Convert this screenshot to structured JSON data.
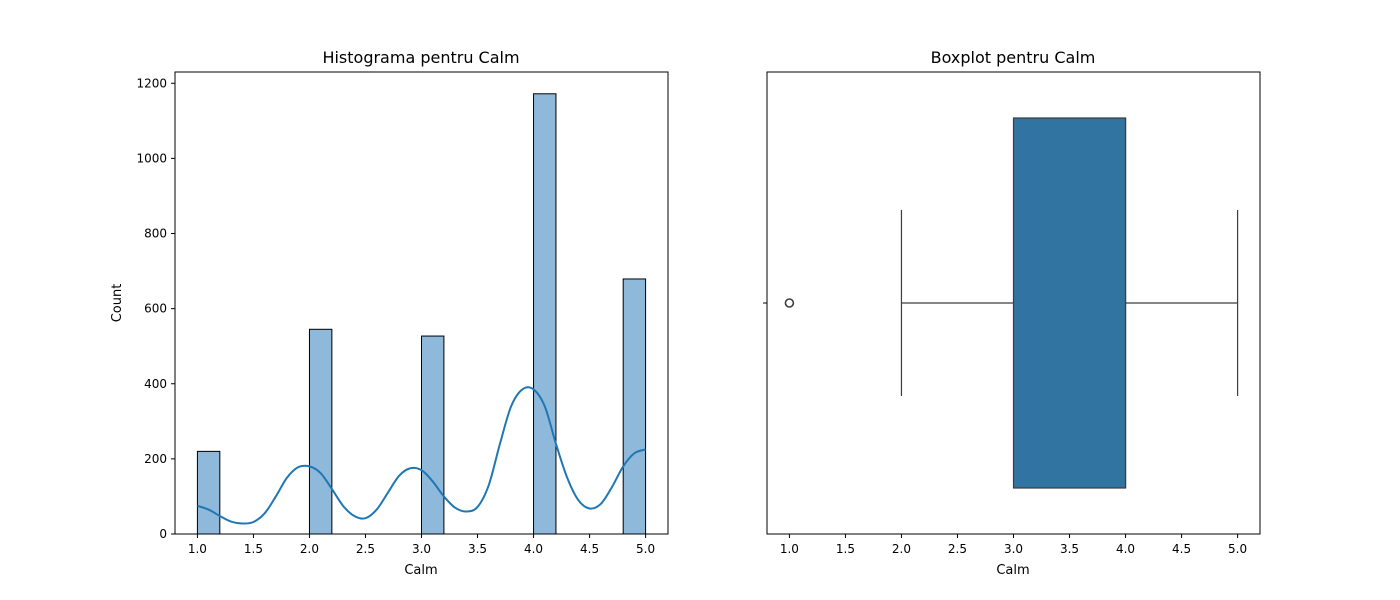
{
  "chart_data": [
    {
      "type": "bar",
      "title": "Histograma pentru Calm",
      "xlabel": "Calm",
      "ylabel": "Count",
      "xlim": [
        0.8,
        5.2
      ],
      "ylim": [
        0,
        1230
      ],
      "xticks": [
        1.0,
        1.5,
        2.0,
        2.5,
        3.0,
        3.5,
        4.0,
        4.5,
        5.0
      ],
      "xtick_labels": [
        "1.0",
        "1.5",
        "2.0",
        "2.5",
        "3.0",
        "3.5",
        "4.0",
        "4.5",
        "5.0"
      ],
      "yticks": [
        0,
        200,
        400,
        600,
        800,
        1000,
        1200
      ],
      "ytick_labels": [
        "0",
        "200",
        "400",
        "600",
        "800",
        "1000",
        "1200"
      ],
      "bar_width": 0.2,
      "bars": [
        {
          "x": 1.0,
          "value": 220
        },
        {
          "x": 2.0,
          "value": 545
        },
        {
          "x": 3.0,
          "value": 527
        },
        {
          "x": 4.0,
          "value": 1172
        },
        {
          "x": 4.8,
          "value": 679
        }
      ],
      "kde": {
        "x": [
          1.0,
          1.1,
          1.2,
          1.3,
          1.4,
          1.5,
          1.6,
          1.7,
          1.8,
          1.9,
          2.0,
          2.1,
          2.2,
          2.3,
          2.4,
          2.5,
          2.6,
          2.7,
          2.8,
          2.9,
          3.0,
          3.1,
          3.2,
          3.3,
          3.4,
          3.5,
          3.6,
          3.7,
          3.8,
          3.9,
          4.0,
          4.1,
          4.2,
          4.3,
          4.4,
          4.5,
          4.6,
          4.7,
          4.8,
          4.9,
          5.0
        ],
        "y": [
          75,
          65,
          48,
          33,
          28,
          32,
          55,
          100,
          150,
          178,
          180,
          162,
          120,
          75,
          48,
          42,
          65,
          110,
          155,
          175,
          170,
          140,
          100,
          70,
          60,
          72,
          130,
          240,
          340,
          385,
          385,
          340,
          240,
          150,
          90,
          68,
          80,
          125,
          180,
          215,
          225
        ]
      },
      "colors": {
        "bar_fill": "#8fb9da",
        "bar_edge": "#000000",
        "kde": "#1f77b4"
      }
    },
    {
      "type": "box",
      "title": "Boxplot pentru Calm",
      "xlabel": "Calm",
      "xlim": [
        0.8,
        5.2
      ],
      "xticks": [
        1.0,
        1.5,
        2.0,
        2.5,
        3.0,
        3.5,
        4.0,
        4.5,
        5.0
      ],
      "xtick_labels": [
        "1.0",
        "1.5",
        "2.0",
        "2.5",
        "3.0",
        "3.5",
        "4.0",
        "4.5",
        "5.0"
      ],
      "box": {
        "whisker_low": 2.0,
        "q1": 3.0,
        "median": 4.0,
        "q3": 4.0,
        "whisker_high": 5.0,
        "outliers": [
          1.0
        ]
      },
      "colors": {
        "box_fill": "#3274a1",
        "line": "#3d3d3d"
      }
    }
  ]
}
